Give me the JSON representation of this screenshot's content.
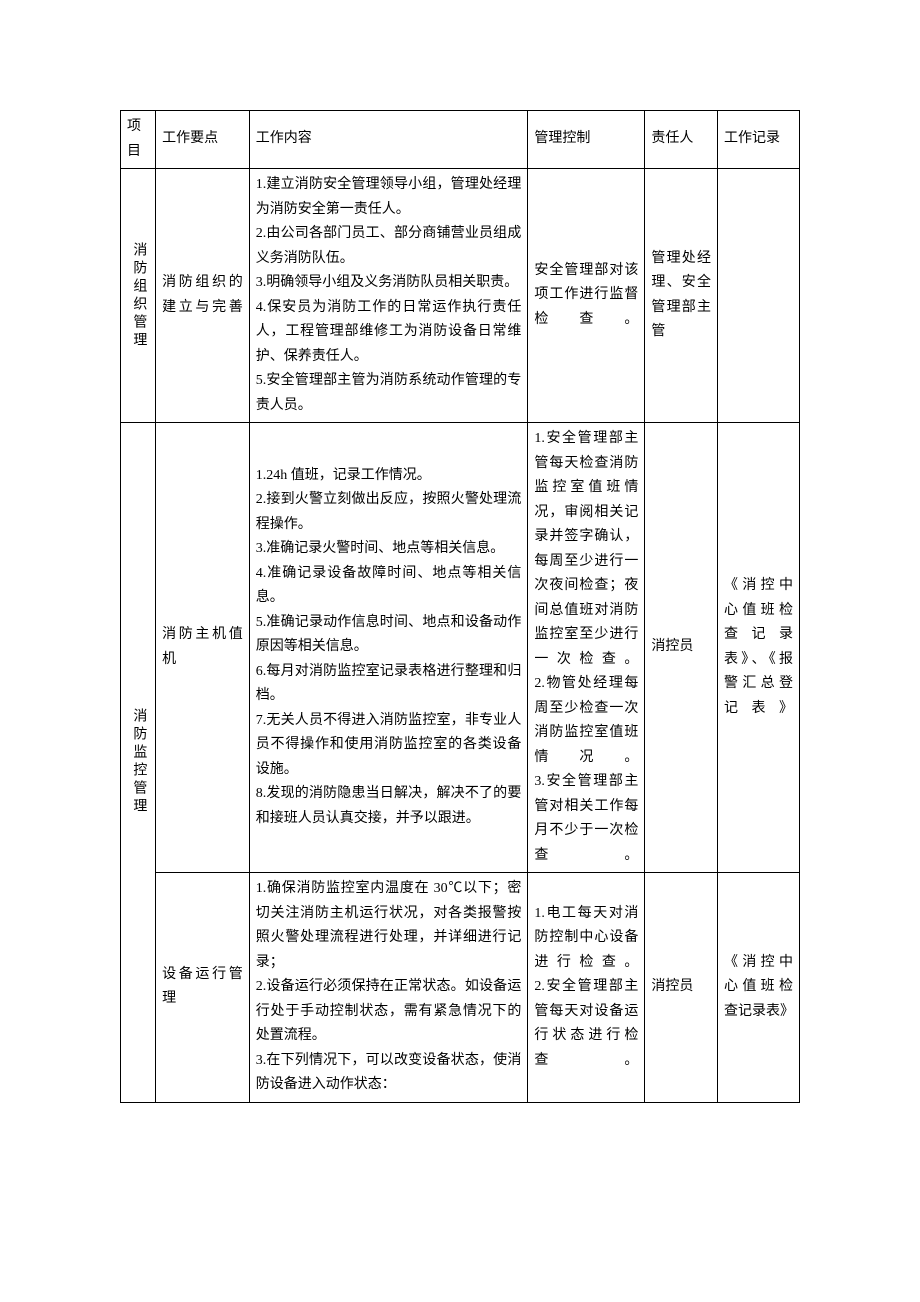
{
  "headers": {
    "project": "项目",
    "keypoint": "工作要点",
    "content": "工作内容",
    "control": "管理控制",
    "person": "责任人",
    "record": "工作记录"
  },
  "rows": [
    {
      "project": "消防组织管理",
      "keypoint": "消防组织的建立与完善",
      "content": "1.建立消防安全管理领导小组，管理处经理为消防安全第一责任人。\n2.由公司各部门员工、部分商铺营业员组成义务消防队伍。\n3.明确领导小组及义务消防队员相关职责。\n4.保安员为消防工作的日常运作执行责任人，工程管理部维修工为消防设备日常维护、保养责任人。\n5.安全管理部主管为消防系统动作管理的专责人员。",
      "control": "安全管理部对该项工作进行监督检查。",
      "person": "管理处经理、安全管理部主管",
      "record": ""
    },
    {
      "project": "消防监控管理",
      "project_rowspan": 2,
      "keypoint": "消防主机值机",
      "content": "1.24h 值班，记录工作情况。\n2.接到火警立刻做出反应，按照火警处理流程操作。\n3.准确记录火警时间、地点等相关信息。\n4.准确记录设备故障时间、地点等相关信息。\n5.准确记录动作信息时间、地点和设备动作原因等相关信息。\n6.每月对消防监控室记录表格进行整理和归档。\n7.无关人员不得进入消防监控室，非专业人员不得操作和使用消防监控室的各类设备设施。\n8.发现的消防隐患当日解决，解决不了的要和接班人员认真交接，并予以跟进。",
      "control": "1.安全管理部主管每天检查消防监控室值班情况，审阅相关记录并签字确认，每周至少进行一次夜间检查；夜间总值班对消防监控室至少进行一次检查。\n2.物管处经理每周至少检查一次消防监控室值班情况。\n3.安全管理部主管对相关工作每月不少于一次检查。",
      "person": "消控员",
      "record": "《消控中心值班检查记录表》、《报警汇总登记表》"
    },
    {
      "keypoint": "设备运行管理",
      "content": "1.确保消防监控室内温度在 30℃以下；密切关注消防主机运行状况，对各类报警按照火警处理流程进行处理，并详细进行记录；\n2.设备运行必须保持在正常状态。如设备运行处于手动控制状态，需有紧急情况下的处置流程。\n3.在下列情况下，可以改变设备状态，使消防设备进入动作状态：",
      "control": "1.电工每天对消防控制中心设备进行检查。\n2.安全管理部主管每天对设备运行状态进行检查。",
      "person": "消控员",
      "record": "《消控中心值班检查记录表》"
    }
  ]
}
